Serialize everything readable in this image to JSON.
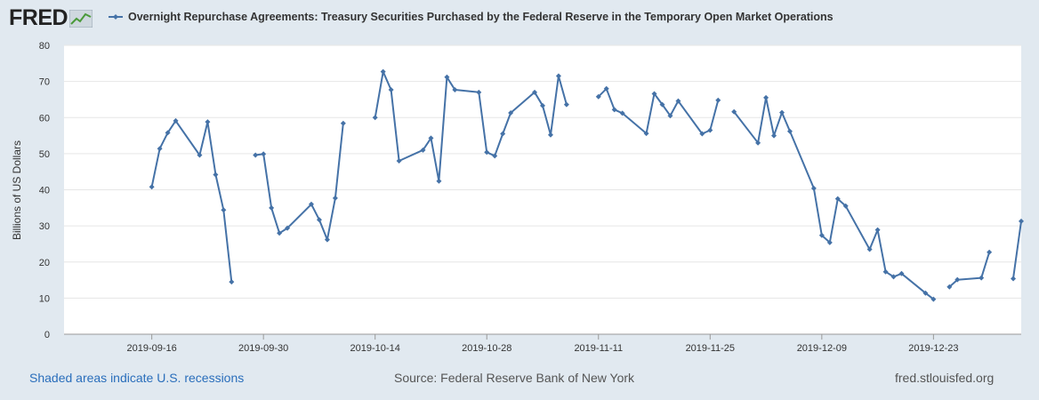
{
  "header": {
    "logo_text": "FRED",
    "legend_label": "Overnight Repurchase Agreements: Treasury Securities Purchased by the Federal Reserve in the Temporary Open Market Operations"
  },
  "footer": {
    "recession_note": "Shaded areas indicate U.S. recessions",
    "source": "Source: Federal Reserve Bank of New York",
    "site": "fred.stlouisfed.org"
  },
  "colors": {
    "series": "#4572a7",
    "background": "#e1e9f0",
    "plot": "#ffffff",
    "grid": "#e6e6e6"
  },
  "chart_data": {
    "type": "line",
    "title": "",
    "xlabel": "",
    "ylabel": "Billions of US Dollars",
    "ylim": [
      0,
      80
    ],
    "yticks": [
      0,
      10,
      20,
      30,
      40,
      50,
      60,
      70,
      80
    ],
    "xticks": [
      "2019-09-16",
      "2019-09-30",
      "2019-10-14",
      "2019-10-28",
      "2019-11-11",
      "2019-11-25",
      "2019-12-09",
      "2019-12-23"
    ],
    "xlim": [
      "2019-09-05",
      "2020-01-03"
    ],
    "grid": true,
    "series": [
      {
        "name": "Overnight Repurchase Agreements: Treasury Securities Purchased by the Federal Reserve in the Temporary Open Market Operations",
        "points": [
          [
            "2019-09-16",
            40.8
          ],
          [
            "2019-09-17",
            51.4
          ],
          [
            "2019-09-18",
            55.8
          ],
          [
            "2019-09-19",
            59.1
          ],
          [
            "2019-09-22",
            49.6
          ],
          [
            "2019-09-23",
            58.8
          ],
          [
            "2019-09-24",
            44.2
          ],
          [
            "2019-09-25",
            34.4
          ],
          [
            "2019-09-26",
            14.5
          ],
          null,
          [
            "2019-09-29",
            49.6
          ],
          [
            "2019-09-30",
            49.9
          ],
          [
            "2019-10-01",
            35.0
          ],
          [
            "2019-10-02",
            28.0
          ],
          [
            "2019-10-03",
            29.4
          ],
          [
            "2019-10-06",
            36.0
          ],
          [
            "2019-10-07",
            31.7
          ],
          [
            "2019-10-08",
            26.2
          ],
          [
            "2019-10-09",
            37.7
          ],
          [
            "2019-10-10",
            58.4
          ],
          null,
          [
            "2019-10-14",
            60.0
          ],
          [
            "2019-10-15",
            72.7
          ],
          [
            "2019-10-16",
            67.7
          ],
          [
            "2019-10-17",
            48.0
          ],
          [
            "2019-10-20",
            51.0
          ],
          [
            "2019-10-21",
            54.3
          ],
          [
            "2019-10-22",
            42.4
          ],
          [
            "2019-10-23",
            71.2
          ],
          [
            "2019-10-24",
            67.7
          ],
          [
            "2019-10-27",
            67.0
          ],
          [
            "2019-10-28",
            50.4
          ],
          [
            "2019-10-29",
            49.4
          ],
          [
            "2019-10-30",
            55.5
          ],
          [
            "2019-10-31",
            61.3
          ],
          [
            "2019-11-03",
            67.0
          ],
          [
            "2019-11-04",
            63.3
          ],
          [
            "2019-11-05",
            55.2
          ],
          [
            "2019-11-06",
            71.5
          ],
          [
            "2019-11-07",
            63.6
          ],
          null,
          [
            "2019-11-11",
            65.8
          ],
          [
            "2019-11-12",
            68.0
          ],
          [
            "2019-11-13",
            62.2
          ],
          [
            "2019-11-14",
            61.2
          ],
          [
            "2019-11-17",
            55.6
          ],
          [
            "2019-11-18",
            66.6
          ],
          [
            "2019-11-19",
            63.6
          ],
          [
            "2019-11-20",
            60.5
          ],
          [
            "2019-11-21",
            64.6
          ],
          [
            "2019-11-24",
            55.5
          ],
          [
            "2019-11-25",
            56.5
          ],
          [
            "2019-11-26",
            64.8
          ],
          null,
          [
            "2019-11-28",
            61.6
          ],
          [
            "2019-12-01",
            53.0
          ],
          [
            "2019-12-02",
            65.5
          ],
          [
            "2019-12-03",
            55.0
          ],
          [
            "2019-12-04",
            61.4
          ],
          [
            "2019-12-05",
            56.2
          ],
          [
            "2019-12-08",
            40.4
          ],
          [
            "2019-12-09",
            27.4
          ],
          [
            "2019-12-10",
            25.4
          ],
          [
            "2019-12-11",
            37.5
          ],
          [
            "2019-12-12",
            35.5
          ],
          [
            "2019-12-15",
            23.5
          ],
          [
            "2019-12-16",
            28.9
          ],
          [
            "2019-12-17",
            17.3
          ],
          [
            "2019-12-18",
            15.9
          ],
          [
            "2019-12-19",
            16.8
          ],
          [
            "2019-12-22",
            11.4
          ],
          [
            "2019-12-23",
            9.7
          ],
          null,
          [
            "2019-12-25",
            13.1
          ],
          [
            "2019-12-26",
            15.1
          ],
          [
            "2019-12-29",
            15.6
          ],
          [
            "2019-12-30",
            22.7
          ],
          null,
          [
            "2020-01-02",
            15.4
          ],
          [
            "2020-01-03",
            31.3
          ]
        ]
      }
    ]
  }
}
